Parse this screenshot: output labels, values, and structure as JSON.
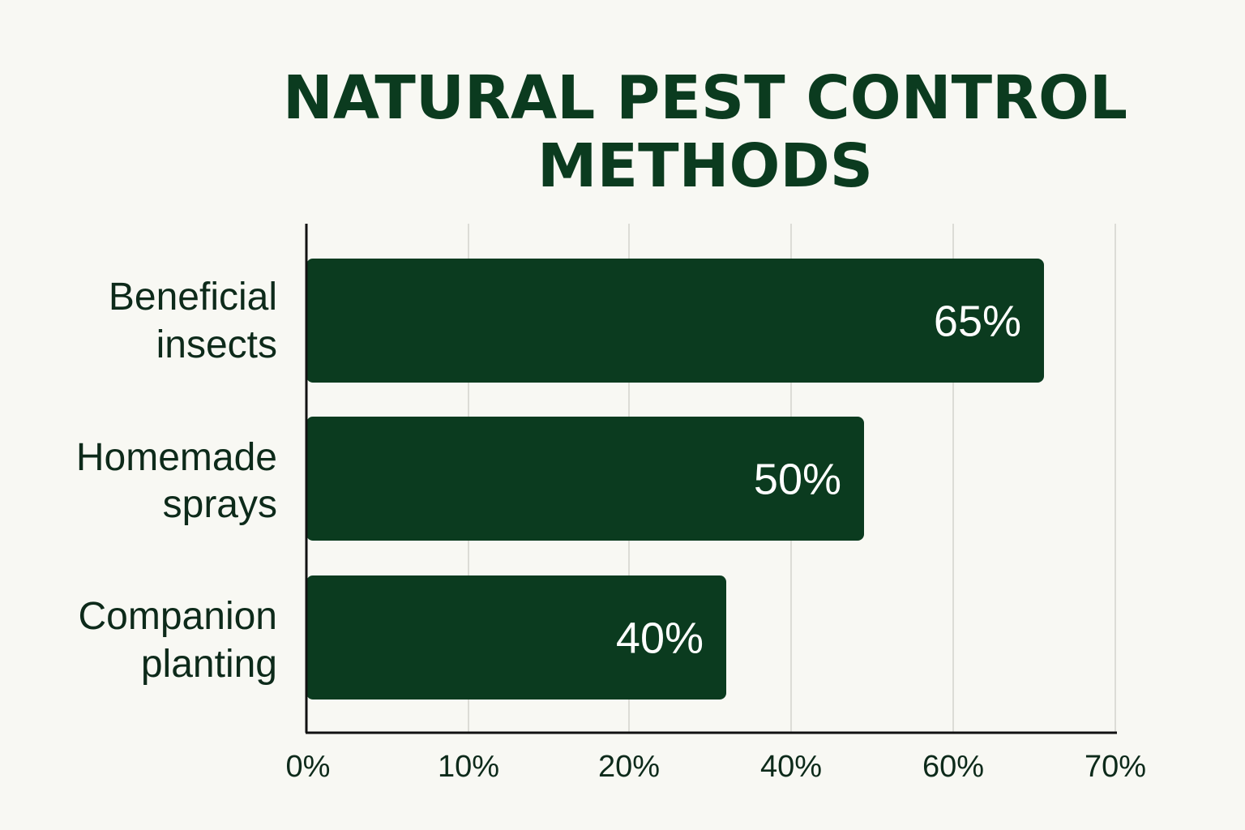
{
  "colors": {
    "background": "#f8f8f3",
    "bar": "#0b3b1f",
    "title": "#0b3b1f",
    "text": "#0d2a1a",
    "grid": "#dcdcd6",
    "axis": "#111111"
  },
  "chart_data": {
    "type": "bar",
    "orientation": "horizontal",
    "title_lines": [
      "NATURAL PEST CONTROL",
      "METHODS"
    ],
    "categories": [
      [
        "Beneficial",
        "insects"
      ],
      [
        "Homemade",
        "sprays"
      ],
      [
        "Companion",
        "planting"
      ]
    ],
    "values": [
      65,
      50,
      40
    ],
    "value_labels": [
      "65%",
      "50%",
      "40%"
    ],
    "x_ticks": [
      "0%",
      "10%",
      "20%",
      "40%",
      "60%",
      "70%"
    ],
    "grid": true,
    "xlabel": "",
    "ylabel": ""
  }
}
